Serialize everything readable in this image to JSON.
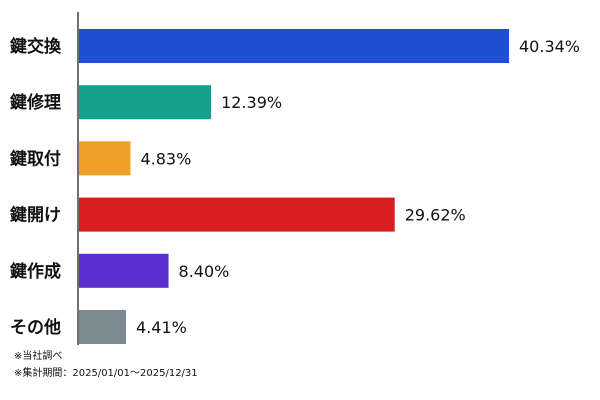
{
  "chart_data": {
    "type": "bar",
    "orientation": "horizontal",
    "categories": [
      "鍵交換",
      "鍵修理",
      "鍵取付",
      "鍵開け",
      "鍵作成",
      "その他"
    ],
    "values": [
      40.34,
      12.39,
      4.83,
      29.62,
      8.4,
      4.41
    ],
    "value_labels": [
      "40.34%",
      "12.39%",
      "4.83%",
      "29.62%",
      "8.40%",
      "4.41%"
    ],
    "colors": [
      "#1f4fd6",
      "#14a08a",
      "#f0a12a",
      "#d81e23",
      "#5a2fcf",
      "#7a8a90"
    ],
    "xlim": [
      0,
      40.34
    ],
    "grid": false,
    "legend": "none"
  },
  "notes": {
    "source": "※当社調べ",
    "period": "※集計期間：2025/01/01～2025/12/31"
  }
}
